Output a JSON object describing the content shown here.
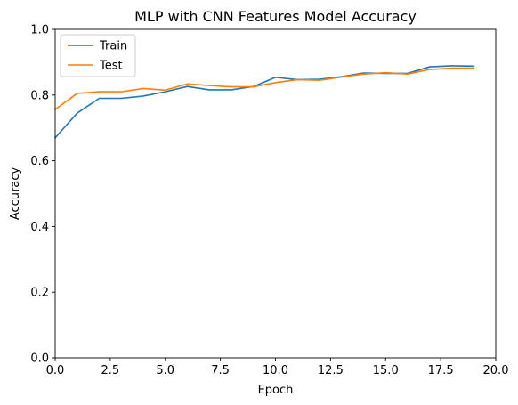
{
  "chart_data": {
    "type": "line",
    "title": "MLP with CNN Features Model Accuracy",
    "xlabel": "Epoch",
    "ylabel": "Accuracy",
    "xlim": [
      0,
      20
    ],
    "ylim": [
      0,
      1
    ],
    "xticks": [
      "0.0",
      "2.5",
      "5.0",
      "7.5",
      "10.0",
      "12.5",
      "15.0",
      "17.5",
      "20.0"
    ],
    "yticks": [
      "0.0",
      "0.2",
      "0.4",
      "0.6",
      "0.8",
      "1.0"
    ],
    "grid": false,
    "legend_position": "top-left",
    "x": [
      0,
      1,
      2,
      3,
      4,
      5,
      6,
      7,
      8,
      9,
      10,
      11,
      12,
      13,
      14,
      15,
      16,
      17,
      18,
      19
    ],
    "series": [
      {
        "name": "Train",
        "color": "#1f77b4",
        "values": [
          0.67,
          0.745,
          0.79,
          0.79,
          0.797,
          0.81,
          0.826,
          0.816,
          0.816,
          0.826,
          0.854,
          0.847,
          0.848,
          0.856,
          0.867,
          0.866,
          0.866,
          0.886,
          0.889,
          0.888
        ]
      },
      {
        "name": "Test",
        "color": "#ff7f0e",
        "values": [
          0.756,
          0.805,
          0.81,
          0.81,
          0.82,
          0.815,
          0.834,
          0.829,
          0.825,
          0.825,
          0.838,
          0.847,
          0.845,
          0.855,
          0.864,
          0.868,
          0.864,
          0.878,
          0.882,
          0.882
        ]
      }
    ]
  }
}
